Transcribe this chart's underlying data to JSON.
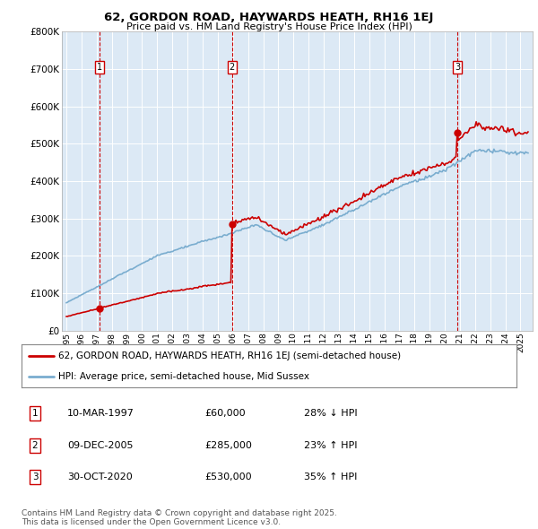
{
  "title": "62, GORDON ROAD, HAYWARDS HEATH, RH16 1EJ",
  "subtitle": "Price paid vs. HM Land Registry's House Price Index (HPI)",
  "background_color": "#dce9f5",
  "plot_bg_color": "#dce9f5",
  "red_color": "#cc0000",
  "blue_color": "#7aadcf",
  "dashed_color": "#cc0000",
  "transactions": [
    {
      "num": 1,
      "date_str": "10-MAR-1997",
      "date_x": 1997.19,
      "price": 60000,
      "hpi_pct": "28% ↓ HPI"
    },
    {
      "num": 2,
      "date_str": "09-DEC-2005",
      "date_x": 2005.94,
      "price": 285000,
      "hpi_pct": "23% ↑ HPI"
    },
    {
      "num": 3,
      "date_str": "30-OCT-2020",
      "date_x": 2020.83,
      "price": 530000,
      "hpi_pct": "35% ↑ HPI"
    }
  ],
  "legend_line1": "62, GORDON ROAD, HAYWARDS HEATH, RH16 1EJ (semi-detached house)",
  "legend_line2": "HPI: Average price, semi-detached house, Mid Sussex",
  "footnote": "Contains HM Land Registry data © Crown copyright and database right 2025.\nThis data is licensed under the Open Government Licence v3.0.",
  "ylim": [
    0,
    800000
  ],
  "yticks": [
    0,
    100000,
    200000,
    300000,
    400000,
    500000,
    600000,
    700000,
    800000
  ],
  "ytick_labels": [
    "£0",
    "£100K",
    "£200K",
    "£300K",
    "£400K",
    "£500K",
    "£600K",
    "£700K",
    "£800K"
  ],
  "xlim": [
    1994.7,
    2025.8
  ],
  "xticks": [
    1995,
    1996,
    1997,
    1998,
    1999,
    2000,
    2001,
    2002,
    2003,
    2004,
    2005,
    2006,
    2007,
    2008,
    2009,
    2010,
    2011,
    2012,
    2013,
    2014,
    2015,
    2016,
    2017,
    2018,
    2019,
    2020,
    2021,
    2022,
    2023,
    2024,
    2025
  ]
}
